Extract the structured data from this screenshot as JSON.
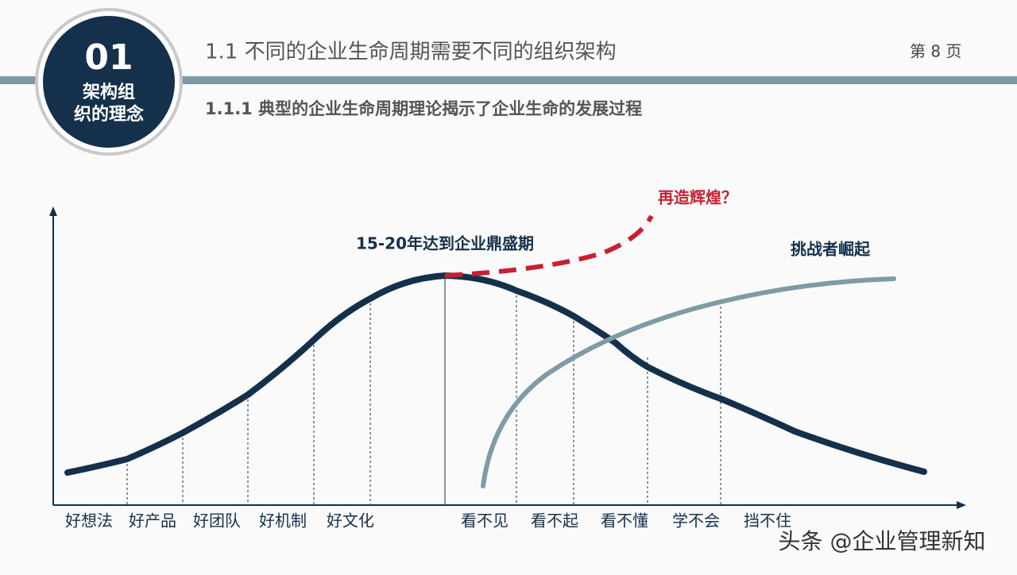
{
  "badge": {
    "number": "01",
    "line1": "架构组",
    "line2": "织的理念"
  },
  "header": {
    "title": "1.1 不同的企业生命周期需要不同的组织架构",
    "page": "第 8 页"
  },
  "subtitle": "1.1.1 典型的企业生命周期理论揭示了企业生命的发展过程",
  "annotations": {
    "peak": "15-20年达到企业鼎盛期",
    "renewal": "再造辉煌？",
    "challenger": "挑战者崛起"
  },
  "stages": [
    "好想法",
    "好产品",
    "好团队",
    "好机制",
    "好文化",
    "看不见",
    "看不起",
    "看不懂",
    "学不会",
    "挡不住"
  ],
  "watermark": "头条 @企业管理新知"
}
